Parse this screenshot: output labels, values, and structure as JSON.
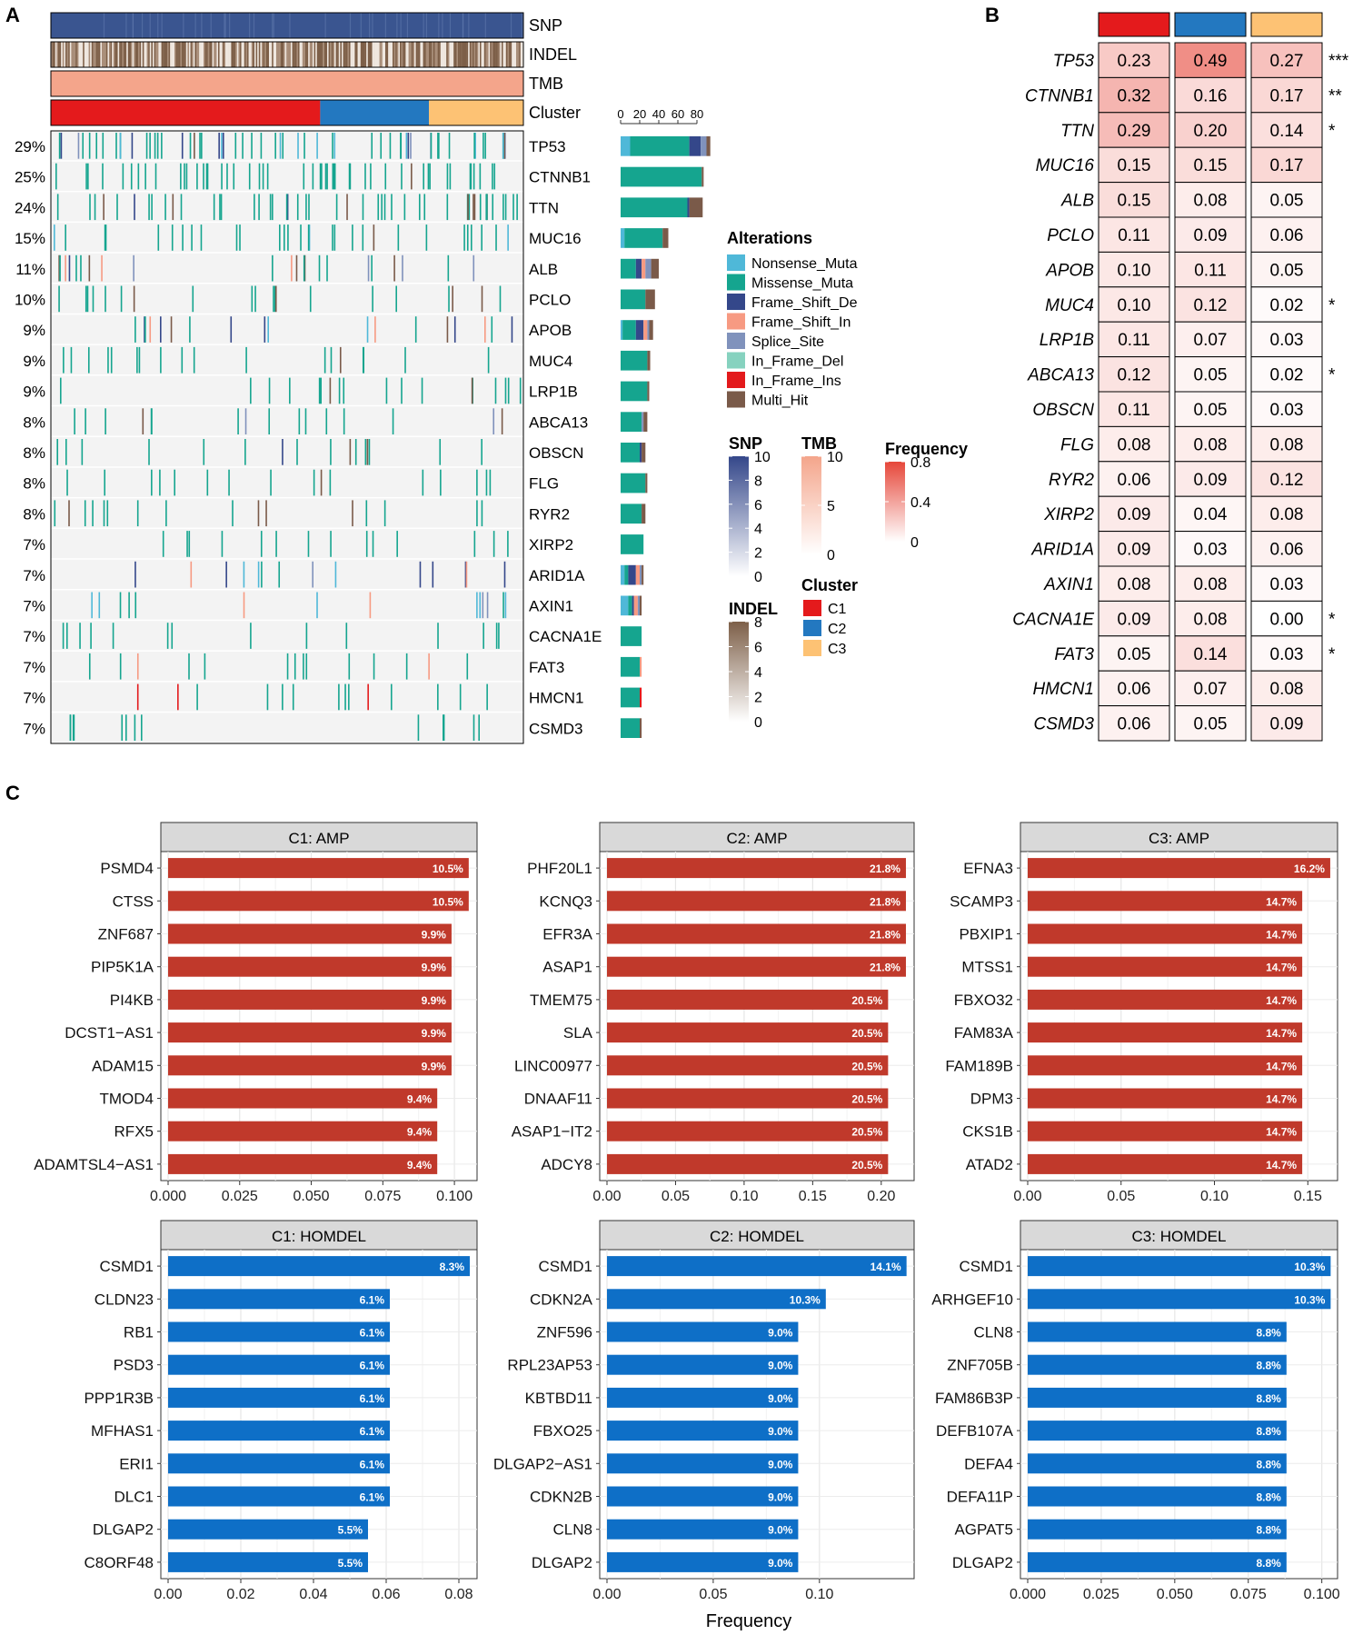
{
  "panel_labels": {
    "a": "A",
    "b": "B",
    "c": "C"
  },
  "colors": {
    "snp": "#3a5590",
    "tmb": "#f4a58b",
    "c1": "#e41a1c",
    "c2": "#2378c0",
    "c3": "#fdc274",
    "bar_amp": "#c0392b",
    "bar_del": "#0e6fc7",
    "nonsense": "#4fb8d8",
    "missense": "#15a58f",
    "fs_del": "#34478a",
    "fs_ins": "#f79a82",
    "splice": "#8092bc",
    "if_del": "#86d2bf",
    "if_ins": "#e31a1c",
    "multi": "#7a5a49"
  },
  "panel_a": {
    "tracks": [
      "SNP",
      "INDEL",
      "TMB",
      "Cluster"
    ],
    "genes": [
      "TP53",
      "CTNNB1",
      "TTN",
      "MUC16",
      "ALB",
      "PCLO",
      "APOB",
      "MUC4",
      "LRP1B",
      "ABCA13",
      "OBSCN",
      "FLG",
      "RYR2",
      "XIRP2",
      "ARID1A",
      "AXIN1",
      "CACNA1E",
      "FAT3",
      "HMCN1",
      "CSMD3"
    ],
    "percents": [
      "29%",
      "25%",
      "24%",
      "15%",
      "11%",
      "10%",
      "9%",
      "9%",
      "9%",
      "8%",
      "8%",
      "8%",
      "8%",
      "7%",
      "7%",
      "7%",
      "7%",
      "7%",
      "7%",
      "7%"
    ],
    "cluster_fractions": [
      0.57,
      0.23,
      0.2
    ],
    "bar_axis_ticks": [
      "0",
      "20",
      "40",
      "60",
      "80"
    ],
    "bar_axis_max": 100,
    "bar_counts": [
      {
        "nonsense": 10,
        "missense": 62,
        "fs_del": 12,
        "fs_ins": 0,
        "splice": 6,
        "if_del": 0,
        "if_ins": 0,
        "multi": 4
      },
      {
        "nonsense": 0,
        "missense": 85,
        "fs_del": 0,
        "fs_ins": 0,
        "splice": 0,
        "if_del": 0,
        "if_ins": 0,
        "multi": 2
      },
      {
        "nonsense": 0,
        "missense": 70,
        "fs_del": 2,
        "fs_ins": 0,
        "splice": 0,
        "if_del": 0,
        "if_ins": 0,
        "multi": 14
      },
      {
        "nonsense": 4,
        "missense": 40,
        "fs_del": 0,
        "fs_ins": 0,
        "splice": 0,
        "if_del": 0,
        "if_ins": 0,
        "multi": 6
      },
      {
        "nonsense": 0,
        "missense": 16,
        "fs_del": 6,
        "fs_ins": 4,
        "splice": 6,
        "if_del": 0,
        "if_ins": 0,
        "multi": 8
      },
      {
        "nonsense": 0,
        "missense": 26,
        "fs_del": 0,
        "fs_ins": 0,
        "splice": 0,
        "if_del": 0,
        "if_ins": 0,
        "multi": 10
      },
      {
        "nonsense": 2,
        "missense": 14,
        "fs_del": 8,
        "fs_ins": 4,
        "splice": 2,
        "if_del": 0,
        "if_ins": 0,
        "multi": 4
      },
      {
        "nonsense": 0,
        "missense": 28,
        "fs_del": 0,
        "fs_ins": 0,
        "splice": 0,
        "if_del": 0,
        "if_ins": 0,
        "multi": 3
      },
      {
        "nonsense": 0,
        "missense": 28,
        "fs_del": 0,
        "fs_ins": 0,
        "splice": 0,
        "if_del": 0,
        "if_ins": 0,
        "multi": 2
      },
      {
        "nonsense": 0,
        "missense": 22,
        "fs_del": 0,
        "fs_ins": 0,
        "splice": 2,
        "if_del": 0,
        "if_ins": 0,
        "multi": 4
      },
      {
        "nonsense": 0,
        "missense": 20,
        "fs_del": 2,
        "fs_ins": 0,
        "splice": 0,
        "if_del": 0,
        "if_ins": 0,
        "multi": 4
      },
      {
        "nonsense": 0,
        "missense": 26,
        "fs_del": 0,
        "fs_ins": 0,
        "splice": 0,
        "if_del": 0,
        "if_ins": 0,
        "multi": 2
      },
      {
        "nonsense": 0,
        "missense": 22,
        "fs_del": 0,
        "fs_ins": 0,
        "splice": 0,
        "if_del": 0,
        "if_ins": 0,
        "multi": 4
      },
      {
        "nonsense": 0,
        "missense": 24,
        "fs_del": 0,
        "fs_ins": 0,
        "splice": 0,
        "if_del": 0,
        "if_ins": 0,
        "multi": 0
      },
      {
        "nonsense": 4,
        "missense": 4,
        "fs_del": 8,
        "fs_ins": 4,
        "splice": 2,
        "if_del": 0,
        "if_ins": 0,
        "multi": 2
      },
      {
        "nonsense": 8,
        "missense": 4,
        "fs_del": 2,
        "fs_ins": 4,
        "splice": 2,
        "if_del": 0,
        "if_ins": 0,
        "multi": 2
      },
      {
        "nonsense": 0,
        "missense": 22,
        "fs_del": 0,
        "fs_ins": 0,
        "splice": 0,
        "if_del": 0,
        "if_ins": 0,
        "multi": 0
      },
      {
        "nonsense": 0,
        "missense": 20,
        "fs_del": 0,
        "fs_ins": 2,
        "splice": 0,
        "if_del": 0,
        "if_ins": 0,
        "multi": 0
      },
      {
        "nonsense": 0,
        "missense": 20,
        "fs_del": 0,
        "fs_ins": 0,
        "splice": 0,
        "if_del": 0,
        "if_ins": 2,
        "multi": 0
      },
      {
        "nonsense": 0,
        "missense": 20,
        "fs_del": 0,
        "fs_ins": 0,
        "splice": 0,
        "if_del": 0,
        "if_ins": 0,
        "multi": 2
      }
    ],
    "alterations_title": "Alterations",
    "alterations": [
      {
        "label": "Nonsense_Muta",
        "key": "nonsense"
      },
      {
        "label": "Missense_Muta",
        "key": "missense"
      },
      {
        "label": "Frame_Shift_De",
        "key": "fs_del"
      },
      {
        "label": "Frame_Shift_In",
        "key": "fs_ins"
      },
      {
        "label": "Splice_Site",
        "key": "splice"
      },
      {
        "label": "In_Frame_Del",
        "key": "if_del"
      },
      {
        "label": "In_Frame_Ins",
        "key": "if_ins"
      },
      {
        "label": "Multi_Hit",
        "key": "multi"
      }
    ],
    "snp_legend": {
      "title": "SNP",
      "ticks": [
        "10",
        "8",
        "6",
        "4",
        "2",
        "0"
      ]
    },
    "indel_legend": {
      "title": "INDEL",
      "ticks": [
        "8",
        "6",
        "4",
        "2",
        "0"
      ]
    },
    "tmb_legend": {
      "title": "TMB",
      "ticks": [
        "10",
        "5",
        "0"
      ]
    },
    "freq_legend": {
      "title": "Frequency",
      "ticks": [
        "0.8",
        "0.4",
        "0"
      ]
    },
    "cluster_legend": {
      "title": "Cluster",
      "items": [
        "C1",
        "C2",
        "C3"
      ]
    }
  },
  "panel_b": {
    "genes": [
      "TP53",
      "CTNNB1",
      "TTN",
      "MUC16",
      "ALB",
      "PCLO",
      "APOB",
      "MUC4",
      "LRP1B",
      "ABCA13",
      "OBSCN",
      "FLG",
      "RYR2",
      "XIRP2",
      "ARID1A",
      "AXIN1",
      "CACNA1E",
      "FAT3",
      "HMCN1",
      "CSMD3"
    ],
    "values": [
      [
        0.23,
        0.49,
        0.27
      ],
      [
        0.32,
        0.16,
        0.17
      ],
      [
        0.29,
        0.2,
        0.14
      ],
      [
        0.15,
        0.15,
        0.17
      ],
      [
        0.15,
        0.08,
        0.05
      ],
      [
        0.11,
        0.09,
        0.06
      ],
      [
        0.1,
        0.11,
        0.05
      ],
      [
        0.1,
        0.12,
        0.02
      ],
      [
        0.11,
        0.07,
        0.03
      ],
      [
        0.12,
        0.05,
        0.02
      ],
      [
        0.11,
        0.05,
        0.03
      ],
      [
        0.08,
        0.08,
        0.08
      ],
      [
        0.06,
        0.09,
        0.12
      ],
      [
        0.09,
        0.04,
        0.08
      ],
      [
        0.09,
        0.03,
        0.06
      ],
      [
        0.08,
        0.08,
        0.03
      ],
      [
        0.09,
        0.08,
        0.0
      ],
      [
        0.05,
        0.14,
        0.03
      ],
      [
        0.06,
        0.07,
        0.08
      ],
      [
        0.06,
        0.05,
        0.09
      ]
    ],
    "labels": [
      [
        "0.23",
        "0.49",
        "0.27"
      ],
      [
        "0.32",
        "0.16",
        "0.17"
      ],
      [
        "0.29",
        "0.20",
        "0.14"
      ],
      [
        "0.15",
        "0.15",
        "0.17"
      ],
      [
        "0.15",
        "0.08",
        "0.05"
      ],
      [
        "0.11",
        "0.09",
        "0.06"
      ],
      [
        "0.10",
        "0.11",
        "0.05"
      ],
      [
        "0.10",
        "0.12",
        "0.02"
      ],
      [
        "0.11",
        "0.07",
        "0.03"
      ],
      [
        "0.12",
        "0.05",
        "0.02"
      ],
      [
        "0.11",
        "0.05",
        "0.03"
      ],
      [
        "0.08",
        "0.08",
        "0.08"
      ],
      [
        "0.06",
        "0.09",
        "0.12"
      ],
      [
        "0.09",
        "0.04",
        "0.08"
      ],
      [
        "0.09",
        "0.03",
        "0.06"
      ],
      [
        "0.08",
        "0.08",
        "0.03"
      ],
      [
        "0.09",
        "0.08",
        "0.00"
      ],
      [
        "0.05",
        "0.14",
        "0.03"
      ],
      [
        "0.06",
        "0.07",
        "0.08"
      ],
      [
        "0.06",
        "0.05",
        "0.09"
      ]
    ],
    "significance": [
      "***",
      "**",
      "*",
      "",
      "",
      "",
      "",
      "*",
      "",
      "*",
      "",
      "",
      "",
      "",
      "",
      "",
      "*",
      "*",
      "",
      ""
    ]
  },
  "chart_data": [
    {
      "type": "bar",
      "title": "C1: AMP",
      "kind": "amp",
      "max": 0.106,
      "categories": [
        "PSMD4",
        "CTSS",
        "ZNF687",
        "PIP5K1A",
        "PI4KB",
        "DCST1−AS1",
        "ADAM15",
        "TMOD4",
        "RFX5",
        "ADAMTSL4−AS1"
      ],
      "values": [
        0.105,
        0.105,
        0.099,
        0.099,
        0.099,
        0.099,
        0.099,
        0.094,
        0.094,
        0.094
      ],
      "labels": [
        "10.5%",
        "10.5%",
        "9.9%",
        "9.9%",
        "9.9%",
        "9.9%",
        "9.9%",
        "9.4%",
        "9.4%",
        "9.4%"
      ],
      "ticks": [
        0,
        0.025,
        0.05,
        0.075,
        0.1
      ],
      "tick_labels": [
        "0.000",
        "0.025",
        "0.050",
        "0.075",
        "0.100"
      ]
    },
    {
      "type": "bar",
      "title": "C2: AMP",
      "kind": "amp",
      "max": 0.22,
      "categories": [
        "PHF20L1",
        "KCNQ3",
        "EFR3A",
        "ASAP1",
        "TMEM75",
        "SLA",
        "LINC00977",
        "DNAAF11",
        "ASAP1−IT2",
        "ADCY8"
      ],
      "values": [
        0.218,
        0.218,
        0.218,
        0.218,
        0.205,
        0.205,
        0.205,
        0.205,
        0.205,
        0.205
      ],
      "labels": [
        "21.8%",
        "21.8%",
        "21.8%",
        "21.8%",
        "20.5%",
        "20.5%",
        "20.5%",
        "20.5%",
        "20.5%",
        "20.5%"
      ],
      "ticks": [
        0,
        0.05,
        0.1,
        0.15,
        0.2
      ],
      "tick_labels": [
        "0.00",
        "0.05",
        "0.10",
        "0.15",
        "0.20"
      ]
    },
    {
      "type": "bar",
      "title": "C3: AMP",
      "kind": "amp",
      "max": 0.163,
      "categories": [
        "EFNA3",
        "SCAMP3",
        "PBXIP1",
        "MTSS1",
        "FBXO32",
        "FAM83A",
        "FAM189B",
        "DPM3",
        "CKS1B",
        "ATAD2"
      ],
      "values": [
        0.162,
        0.147,
        0.147,
        0.147,
        0.147,
        0.147,
        0.147,
        0.147,
        0.147,
        0.147
      ],
      "labels": [
        "16.2%",
        "14.7%",
        "14.7%",
        "14.7%",
        "14.7%",
        "14.7%",
        "14.7%",
        "14.7%",
        "14.7%",
        "14.7%"
      ],
      "ticks": [
        0,
        0.05,
        0.1,
        0.15
      ],
      "tick_labels": [
        "0.00",
        "0.05",
        "0.10",
        "0.15"
      ]
    },
    {
      "type": "bar",
      "title": "C1: HOMDEL",
      "kind": "del",
      "max": 0.0835,
      "categories": [
        "CSMD1",
        "CLDN23",
        "RB1",
        "PSD3",
        "PPP1R3B",
        "MFHAS1",
        "ERI1",
        "DLC1",
        "DLGAP2",
        "C8ORF48"
      ],
      "values": [
        0.083,
        0.061,
        0.061,
        0.061,
        0.061,
        0.061,
        0.061,
        0.061,
        0.055,
        0.055
      ],
      "labels": [
        "8.3%",
        "6.1%",
        "6.1%",
        "6.1%",
        "6.1%",
        "6.1%",
        "6.1%",
        "6.1%",
        "5.5%",
        "5.5%"
      ],
      "ticks": [
        0,
        0.02,
        0.04,
        0.06,
        0.08
      ],
      "tick_labels": [
        "0.00",
        "0.02",
        "0.04",
        "0.06",
        "0.08"
      ]
    },
    {
      "type": "bar",
      "title": "C2: HOMDEL",
      "kind": "del",
      "max": 0.142,
      "categories": [
        "CSMD1",
        "CDKN2A",
        "ZNF596",
        "RPL23AP53",
        "KBTBD11",
        "FBXO25",
        "DLGAP2−AS1",
        "CDKN2B",
        "CLN8",
        "DLGAP2"
      ],
      "values": [
        0.141,
        0.103,
        0.09,
        0.09,
        0.09,
        0.09,
        0.09,
        0.09,
        0.09,
        0.09
      ],
      "labels": [
        "14.1%",
        "10.3%",
        "9.0%",
        "9.0%",
        "9.0%",
        "9.0%",
        "9.0%",
        "9.0%",
        "9.0%",
        "9.0%"
      ],
      "ticks": [
        0,
        0.05,
        0.1
      ],
      "tick_labels": [
        "0.00",
        "0.05",
        "0.10"
      ]
    },
    {
      "type": "bar",
      "title": "C3: HOMDEL",
      "kind": "del",
      "max": 0.1035,
      "categories": [
        "CSMD1",
        "ARHGEF10",
        "CLN8",
        "ZNF705B",
        "FAM86B3P",
        "DEFB107A",
        "DEFA4",
        "DEFA11P",
        "AGPAT5",
        "DLGAP2"
      ],
      "values": [
        0.103,
        0.103,
        0.088,
        0.088,
        0.088,
        0.088,
        0.088,
        0.088,
        0.088,
        0.088
      ],
      "labels": [
        "10.3%",
        "10.3%",
        "8.8%",
        "8.8%",
        "8.8%",
        "8.8%",
        "8.8%",
        "8.8%",
        "8.8%",
        "8.8%"
      ],
      "ticks": [
        0,
        0.025,
        0.05,
        0.075,
        0.1
      ],
      "tick_labels": [
        "0.000",
        "0.025",
        "0.050",
        "0.075",
        "0.100"
      ]
    }
  ],
  "xlabel": "Frequency"
}
